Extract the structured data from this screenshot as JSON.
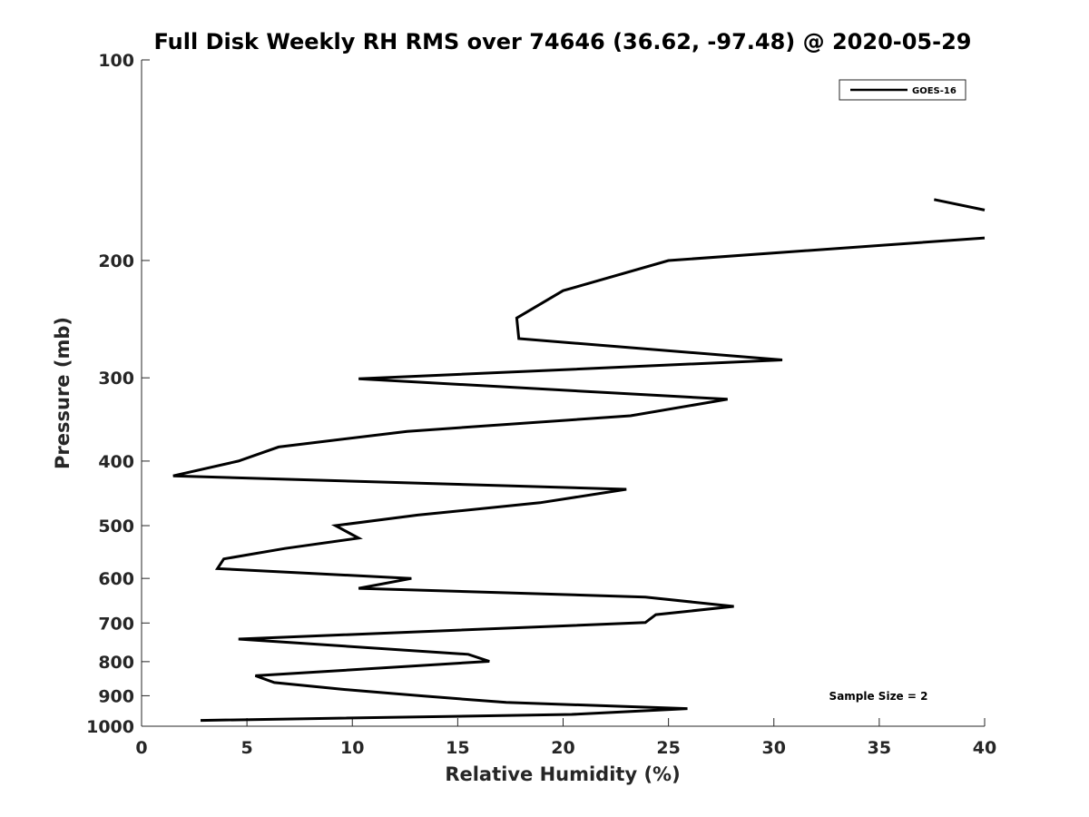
{
  "chart_data": {
    "type": "line",
    "title": "Full Disk Weekly RH RMS over 74646 (36.62, -97.48) @ 2020-05-29",
    "xlabel": "Relative Humidity (%)",
    "ylabel": "Pressure (mb)",
    "xlim": [
      0,
      40
    ],
    "ylim": [
      100,
      1000
    ],
    "y_scale": "log",
    "y_reversed": true,
    "x_ticks": [
      0,
      5,
      10,
      15,
      20,
      25,
      30,
      35,
      40
    ],
    "y_ticks": [
      100,
      200,
      300,
      400,
      500,
      600,
      700,
      800,
      900,
      1000
    ],
    "grid": false,
    "legend_position": "top-right",
    "annotation": "Sample Size = 2",
    "series": [
      {
        "name": "GOES-16",
        "color": "#000000",
        "segments": [
          [
            {
              "x": 37.6,
              "y": 162
            },
            {
              "x": 40.0,
              "y": 168
            }
          ],
          [
            {
              "x": 40.0,
              "y": 185
            },
            {
              "x": 25.0,
              "y": 200
            },
            {
              "x": 20.0,
              "y": 222
            },
            {
              "x": 17.8,
              "y": 244
            },
            {
              "x": 17.9,
              "y": 262
            },
            {
              "x": 30.4,
              "y": 282
            },
            {
              "x": 10.3,
              "y": 301
            },
            {
              "x": 27.8,
              "y": 323
            },
            {
              "x": 23.2,
              "y": 342
            },
            {
              "x": 12.6,
              "y": 361
            },
            {
              "x": 6.5,
              "y": 381
            },
            {
              "x": 4.6,
              "y": 400
            },
            {
              "x": 1.5,
              "y": 421
            },
            {
              "x": 23.0,
              "y": 441
            },
            {
              "x": 18.9,
              "y": 462
            },
            {
              "x": 13.1,
              "y": 482
            },
            {
              "x": 9.2,
              "y": 500
            },
            {
              "x": 10.3,
              "y": 522
            },
            {
              "x": 6.8,
              "y": 541
            },
            {
              "x": 3.9,
              "y": 561
            },
            {
              "x": 3.6,
              "y": 580
            },
            {
              "x": 12.8,
              "y": 600
            },
            {
              "x": 10.3,
              "y": 621
            },
            {
              "x": 23.9,
              "y": 640
            },
            {
              "x": 28.1,
              "y": 661
            },
            {
              "x": 24.4,
              "y": 680
            },
            {
              "x": 23.9,
              "y": 699
            },
            {
              "x": 4.6,
              "y": 740
            },
            {
              "x": 15.5,
              "y": 780
            },
            {
              "x": 16.5,
              "y": 799
            },
            {
              "x": 5.4,
              "y": 840
            },
            {
              "x": 6.3,
              "y": 860
            },
            {
              "x": 9.5,
              "y": 880
            },
            {
              "x": 13.4,
              "y": 901
            },
            {
              "x": 17.3,
              "y": 921
            },
            {
              "x": 25.9,
              "y": 941
            },
            {
              "x": 20.4,
              "y": 960
            },
            {
              "x": 2.8,
              "y": 980
            }
          ]
        ]
      }
    ]
  }
}
